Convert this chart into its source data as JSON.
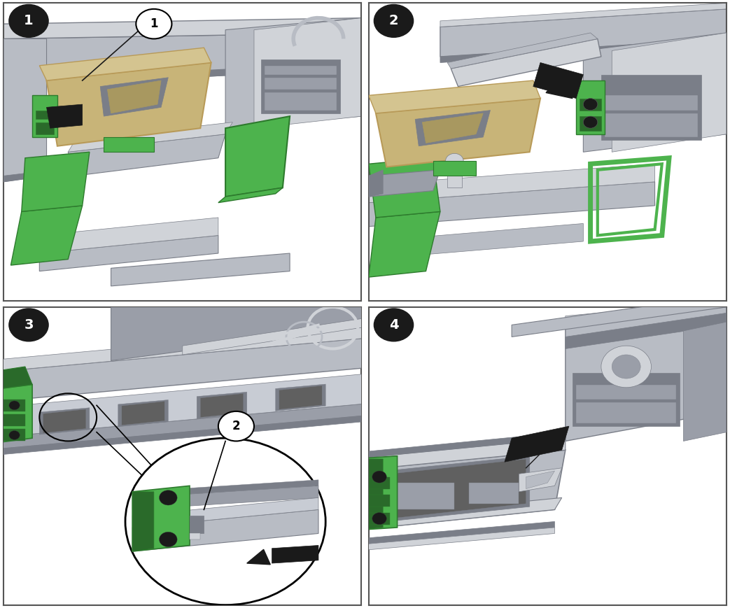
{
  "figure_width": 10.43,
  "figure_height": 8.69,
  "dpi": 100,
  "background_color": "#ffffff",
  "border_color": "#555555",
  "panel_bg": "#ffffff",
  "green": "#4db34d",
  "dark_green": "#2d7a2d",
  "gray1": "#9a9ea8",
  "gray2": "#b8bcc4",
  "gray3": "#d0d3d8",
  "gray4": "#7a7e88",
  "gray5": "#c8ccd4",
  "tan": "#c8b478",
  "tan2": "#b89a58",
  "black": "#1a1a1a",
  "white": "#ffffff",
  "arrow_black": "#1c1c1c",
  "badge_black": "#1a1a1a"
}
